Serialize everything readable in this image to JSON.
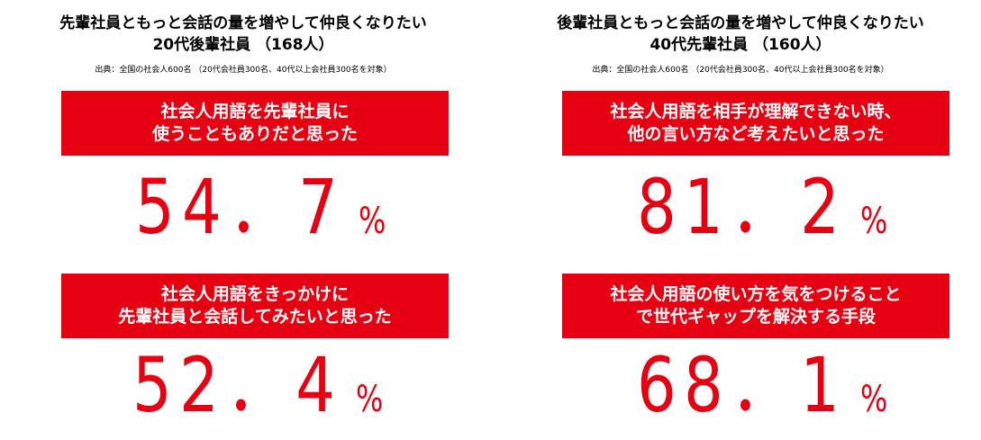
{
  "left": {
    "title_line1": "先輩社員ともっと会話の量を増やして仲良くなりたい",
    "title_line2": "20代後輩社員 （168人）",
    "source": "出典：全国の社会人600名 （20代会社員300名、40代以上会社員300名を対象）",
    "items": [
      {
        "line1": "社会人用語を先輩社員に",
        "line2": "使うこともありだと思った",
        "value": "54．7",
        "unit": "%"
      },
      {
        "line1": "社会人用語をきっかけに",
        "line2": "先輩社員と会話してみたいと思った",
        "value": "52．4",
        "unit": "%"
      }
    ]
  },
  "right": {
    "title_line1": "後輩社員ともっと会話の量を増やして仲良くなりたい",
    "title_line2": "40代先輩社員 （160人）",
    "source": "出典：全国の社会人600名 （20代会社員300名、40代以上会社員300名を対象）",
    "items": [
      {
        "line1": "社会人用語を相手が理解できない時、",
        "line2": "他の言い方など考えたいと思った",
        "value": "81．2",
        "unit": "%"
      },
      {
        "line1": "社会人用語の使い方を気をつけること",
        "line2": "で世代ギャップを解決する手段",
        "value": "68．1",
        "unit": "%"
      }
    ]
  },
  "colors": {
    "accent": "#e60012",
    "text": "#000000",
    "banner_text": "#ffffff"
  }
}
